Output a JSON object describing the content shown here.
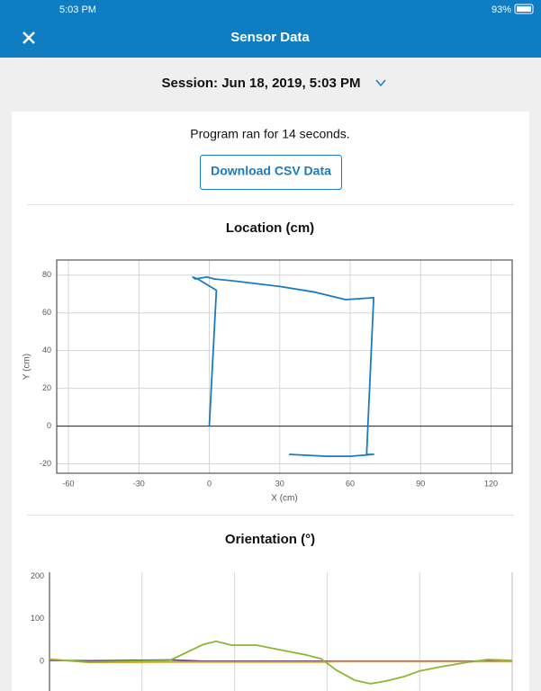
{
  "status_bar": {
    "time": "5:03 PM",
    "battery": "93%"
  },
  "header": {
    "title": "Sensor Data"
  },
  "session": "Session: Jun 18, 2019, 5:03 PM",
  "summary": "Program ran for 14 seconds.",
  "download_button": "Download CSV Data",
  "chart_data": [
    {
      "type": "line",
      "title": "Location (cm)",
      "xlabel": "X (cm)",
      "ylabel": "Y (cm)",
      "x": [
        0,
        3,
        -5,
        -7,
        -6,
        -1,
        2,
        10,
        30,
        45,
        58,
        70,
        67,
        70,
        60,
        50,
        34
      ],
      "series": [
        {
          "color": "#1a7bc0",
          "values": [
            0,
            72,
            78,
            79,
            78,
            79,
            78,
            77,
            74,
            71,
            67,
            68,
            -15,
            -15,
            -16,
            -16,
            -15
          ]
        }
      ],
      "xlim": [
        -65,
        129
      ],
      "ylim": [
        -25,
        88
      ],
      "xticks": [
        -60,
        -30,
        0,
        30,
        60,
        90,
        120
      ],
      "yticks": [
        -20,
        0,
        20,
        40,
        60,
        80
      ],
      "grid": true
    },
    {
      "type": "line",
      "title": "Orientation (°)",
      "x": [
        0,
        1.3,
        3.9,
        5,
        5.4,
        5.9,
        6.7,
        7.4,
        8.3,
        8.8,
        9.3,
        9.9,
        10.4,
        10.9,
        11.5,
        12,
        12.7,
        13.6,
        14.2,
        15
      ],
      "series": [
        {
          "color": "#6a3d8c",
          "values": [
            2,
            1,
            3,
            0,
            0,
            0,
            0,
            0,
            0,
            0,
            0,
            0,
            0,
            0,
            0,
            0,
            0,
            0,
            0,
            0
          ]
        },
        {
          "color": "#e2a322",
          "values": [
            5,
            -3,
            -2,
            -2,
            -2,
            -2,
            -2,
            -2,
            -2,
            -2,
            -1,
            -1,
            -1,
            -1,
            -1,
            -1,
            -1,
            -1,
            -1,
            -1
          ]
        },
        {
          "color": "#8ab833",
          "values": [
            4,
            -2,
            2,
            40,
            47,
            38,
            38,
            28,
            15,
            6,
            -21,
            -45,
            -53,
            -47,
            -36,
            -23,
            -13,
            -2,
            4,
            2
          ]
        }
      ],
      "xlim": [
        0,
        15
      ],
      "ylim": [
        -100,
        210
      ],
      "xticks": [
        3,
        6,
        9,
        12
      ],
      "yticks": [
        0,
        100,
        200
      ],
      "grid": "x"
    }
  ]
}
